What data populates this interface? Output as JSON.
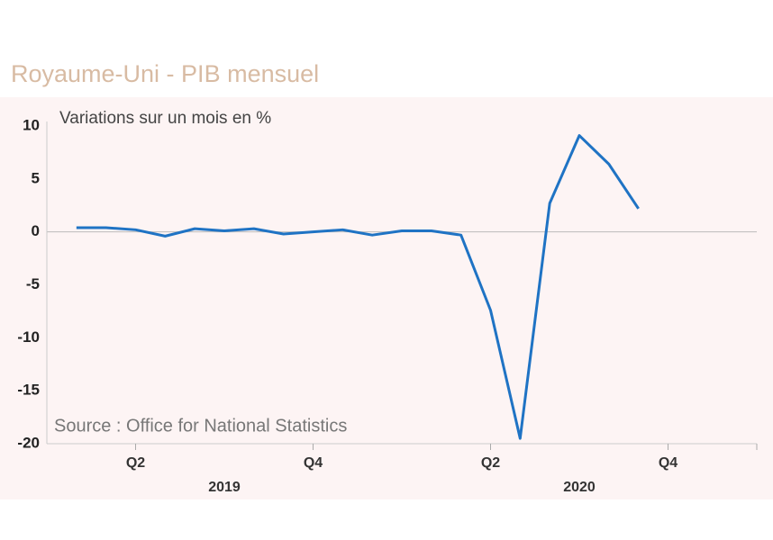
{
  "chart_data": {
    "type": "line",
    "title": "Royaume-Uni - PIB mensuel",
    "subtitle": "Variations sur un mois en %",
    "source": "Source : Office for National Statistics",
    "x": [
      1,
      2,
      3,
      4,
      5,
      6,
      7,
      8,
      9,
      10,
      11,
      12,
      13,
      14,
      15,
      16,
      17,
      18,
      19,
      20
    ],
    "series": [
      {
        "name": "PIB mensuel",
        "color": "#1f73c4",
        "values": [
          0.4,
          0.4,
          0.2,
          -0.4,
          0.3,
          0.1,
          0.3,
          -0.2,
          0,
          0.2,
          -0.3,
          0.1,
          0.1,
          -0.3,
          -7.4,
          -19.5,
          2.7,
          9.1,
          6.4,
          2.2
        ]
      }
    ],
    "xlim": [
      0,
      24
    ],
    "xticks": [
      {
        "value": 3,
        "label": "Q2"
      },
      {
        "value": 9,
        "label": "Q4"
      },
      {
        "value": 15,
        "label": "Q2"
      },
      {
        "value": 21,
        "label": "Q4"
      }
    ],
    "years": [
      {
        "value": 6,
        "label": "2019"
      },
      {
        "value": 18,
        "label": "2020"
      }
    ],
    "ylim": [
      -20,
      10
    ],
    "yticks": [
      -20,
      -15,
      -10,
      -5,
      0,
      5,
      10
    ]
  }
}
